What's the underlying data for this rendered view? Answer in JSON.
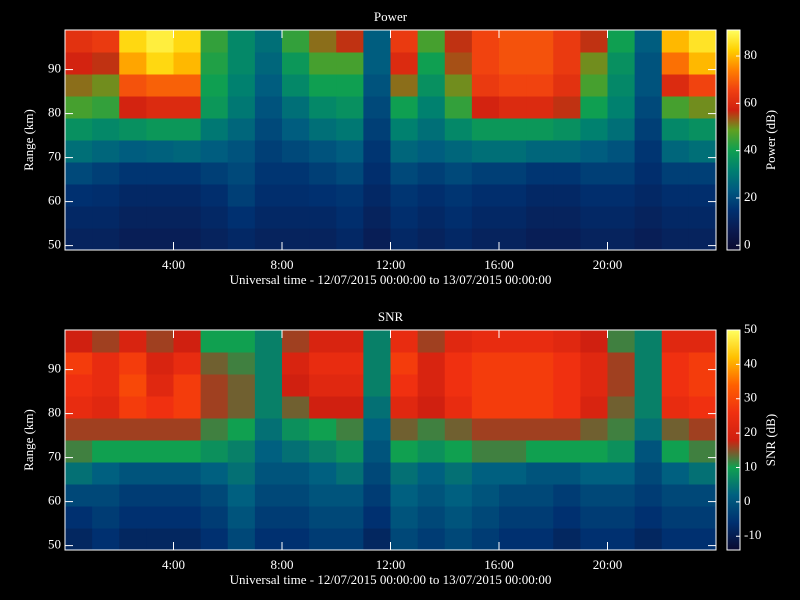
{
  "chart_data": [
    {
      "type": "heatmap",
      "title": "Power",
      "x_label": "Universal time - 12/07/2015 00:00:00 to 13/07/2015 00:00:00",
      "y_label": "Range (km)",
      "colorbar_label": "Power (dB)",
      "xlim": [
        0,
        24
      ],
      "xticks": [
        {
          "value": 4,
          "label": "4:00"
        },
        {
          "value": 8,
          "label": "8:00"
        },
        {
          "value": 12,
          "label": "12:00"
        },
        {
          "value": 16,
          "label": "16:00"
        },
        {
          "value": 20,
          "label": "20:00"
        }
      ],
      "ylim": [
        49,
        99
      ],
      "yticks": [
        50,
        60,
        70,
        80,
        90
      ],
      "clim": [
        -2,
        91
      ],
      "cticks": [
        0,
        20,
        40,
        60,
        80
      ],
      "colormap": [
        "#0a0a30",
        "#0a1a50",
        "#003070",
        "#005a80",
        "#008070",
        "#10a050",
        "#60a020",
        "#d02010",
        "#f04010",
        "#ff8000",
        "#ffd000",
        "#ffff60"
      ],
      "x": [
        0.5,
        1.5,
        2.5,
        3.5,
        4.5,
        5.5,
        6.5,
        7.5,
        8.5,
        9.5,
        10.5,
        11.5,
        12.5,
        13.5,
        14.5,
        15.5,
        16.5,
        17.5,
        18.5,
        19.5,
        20.5,
        21.5,
        22.5,
        23.5
      ],
      "y": [
        51.5,
        56.5,
        61.5,
        66.5,
        71.5,
        76.5,
        81.5,
        86.5,
        91.5,
        96.5
      ],
      "values": [
        [
          10,
          10,
          8,
          8,
          8,
          10,
          12,
          10,
          10,
          10,
          12,
          8,
          12,
          10,
          12,
          10,
          10,
          8,
          8,
          10,
          10,
          8,
          10,
          10
        ],
        [
          12,
          12,
          10,
          10,
          10,
          12,
          15,
          12,
          12,
          12,
          14,
          10,
          14,
          12,
          14,
          12,
          12,
          10,
          10,
          12,
          12,
          10,
          12,
          12
        ],
        [
          15,
          14,
          12,
          12,
          12,
          14,
          18,
          14,
          14,
          15,
          16,
          12,
          16,
          14,
          16,
          14,
          14,
          12,
          12,
          14,
          14,
          12,
          14,
          14
        ],
        [
          20,
          18,
          16,
          16,
          16,
          18,
          20,
          16,
          16,
          18,
          20,
          14,
          20,
          18,
          20,
          18,
          18,
          16,
          16,
          18,
          18,
          14,
          18,
          18
        ],
        [
          28,
          26,
          24,
          25,
          26,
          24,
          22,
          18,
          20,
          22,
          24,
          16,
          26,
          24,
          26,
          28,
          28,
          26,
          26,
          24,
          22,
          16,
          26,
          28
        ],
        [
          36,
          34,
          36,
          38,
          38,
          30,
          26,
          20,
          24,
          28,
          30,
          18,
          32,
          28,
          34,
          38,
          38,
          38,
          36,
          32,
          28,
          18,
          34,
          36
        ],
        [
          46,
          44,
          58,
          60,
          60,
          38,
          30,
          22,
          28,
          34,
          36,
          20,
          40,
          32,
          44,
          58,
          60,
          60,
          56,
          40,
          32,
          20,
          46,
          50
        ],
        [
          52,
          50,
          68,
          70,
          70,
          40,
          32,
          24,
          34,
          40,
          40,
          22,
          52,
          36,
          50,
          64,
          66,
          66,
          62,
          46,
          34,
          22,
          60,
          66
        ],
        [
          58,
          56,
          78,
          84,
          80,
          42,
          34,
          26,
          38,
          46,
          46,
          24,
          60,
          40,
          54,
          66,
          68,
          68,
          64,
          50,
          36,
          22,
          72,
          80
        ],
        [
          62,
          64,
          84,
          88,
          84,
          44,
          34,
          28,
          44,
          52,
          56,
          24,
          64,
          46,
          56,
          66,
          68,
          68,
          64,
          56,
          40,
          24,
          80,
          86
        ]
      ]
    },
    {
      "type": "heatmap",
      "title": "SNR",
      "x_label": "Universal time - 12/07/2015 00:00:00 to 13/07/2015 00:00:00",
      "y_label": "Range (km)",
      "colorbar_label": "SNR (dB)",
      "xlim": [
        0,
        24
      ],
      "xticks": [
        {
          "value": 4,
          "label": "4:00"
        },
        {
          "value": 8,
          "label": "8:00"
        },
        {
          "value": 12,
          "label": "12:00"
        },
        {
          "value": 16,
          "label": "16:00"
        },
        {
          "value": 20,
          "label": "20:00"
        }
      ],
      "ylim": [
        49,
        99
      ],
      "yticks": [
        50,
        60,
        70,
        80,
        90
      ],
      "clim": [
        -14,
        50
      ],
      "cticks": [
        -10,
        0,
        10,
        20,
        30,
        40,
        50
      ],
      "colormap": [
        "#0a0a30",
        "#003070",
        "#006080",
        "#10a050",
        "#d02010",
        "#f03010",
        "#ff6000",
        "#ffc000",
        "#ffff60"
      ],
      "x": [
        0.5,
        1.5,
        2.5,
        3.5,
        4.5,
        5.5,
        6.5,
        7.5,
        8.5,
        9.5,
        10.5,
        11.5,
        12.5,
        13.5,
        14.5,
        15.5,
        16.5,
        17.5,
        18.5,
        19.5,
        20.5,
        21.5,
        22.5,
        23.5
      ],
      "y": [
        51.5,
        56.5,
        61.5,
        66.5,
        71.5,
        76.5,
        81.5,
        86.5,
        91.5,
        96.5
      ],
      "values": [
        [
          -8,
          -6,
          -8,
          -8,
          -8,
          -6,
          -2,
          -6,
          -6,
          -4,
          -4,
          -8,
          -2,
          -4,
          -2,
          -4,
          -6,
          -6,
          -8,
          -6,
          -6,
          -8,
          -6,
          -6
        ],
        [
          -6,
          -4,
          -6,
          -6,
          -6,
          -4,
          0,
          -4,
          -4,
          -2,
          -2,
          -6,
          0,
          -2,
          0,
          -2,
          -4,
          -4,
          -6,
          -4,
          -4,
          -6,
          -4,
          -4
        ],
        [
          -2,
          -2,
          -4,
          -4,
          -4,
          -2,
          2,
          -2,
          -2,
          0,
          0,
          -4,
          2,
          0,
          2,
          0,
          -2,
          -2,
          -4,
          -2,
          -2,
          -4,
          -2,
          -2
        ],
        [
          4,
          2,
          0,
          0,
          0,
          2,
          4,
          0,
          0,
          2,
          4,
          -2,
          4,
          2,
          4,
          2,
          2,
          0,
          0,
          2,
          2,
          -2,
          2,
          4
        ],
        [
          12,
          10,
          10,
          10,
          10,
          8,
          6,
          2,
          4,
          6,
          8,
          0,
          10,
          8,
          10,
          12,
          12,
          10,
          10,
          10,
          8,
          0,
          10,
          12
        ],
        [
          16,
          16,
          16,
          16,
          16,
          12,
          10,
          4,
          8,
          10,
          12,
          2,
          14,
          12,
          14,
          16,
          16,
          16,
          16,
          14,
          12,
          4,
          14,
          16
        ],
        [
          24,
          22,
          28,
          26,
          28,
          16,
          14,
          6,
          14,
          18,
          18,
          4,
          22,
          18,
          24,
          28,
          28,
          28,
          26,
          20,
          14,
          6,
          24,
          26
        ],
        [
          26,
          24,
          30,
          22,
          28,
          16,
          14,
          6,
          18,
          22,
          22,
          6,
          26,
          20,
          26,
          28,
          28,
          28,
          26,
          22,
          16,
          6,
          26,
          28
        ],
        [
          28,
          24,
          28,
          20,
          24,
          14,
          12,
          6,
          20,
          24,
          24,
          6,
          28,
          20,
          26,
          28,
          28,
          28,
          26,
          22,
          16,
          6,
          26,
          28
        ],
        [
          18,
          16,
          20,
          16,
          18,
          10,
          10,
          6,
          16,
          20,
          20,
          6,
          24,
          16,
          22,
          24,
          24,
          24,
          22,
          18,
          12,
          6,
          22,
          22
        ]
      ]
    }
  ]
}
